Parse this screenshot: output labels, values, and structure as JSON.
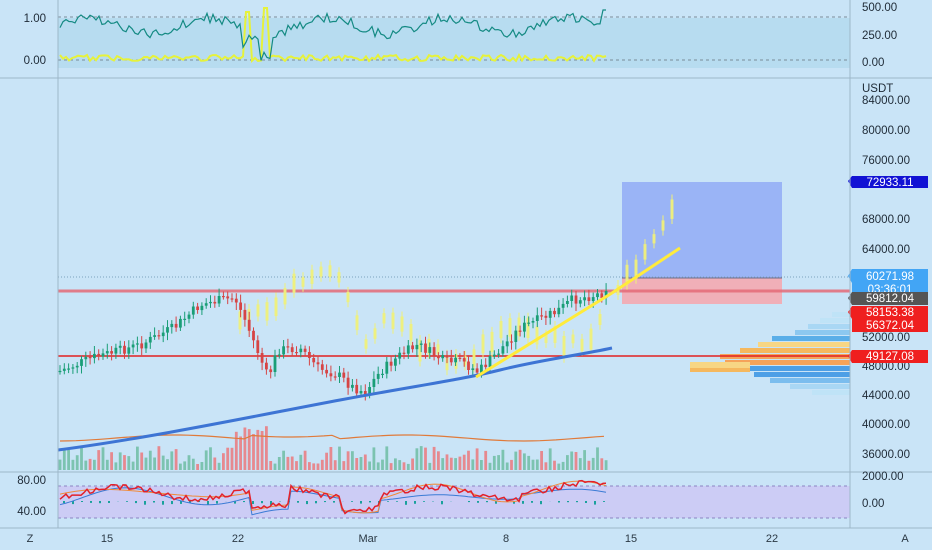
{
  "panels": {
    "top": {
      "left_axis": [
        "1.00",
        "0.00"
      ],
      "right_axis": [
        "500.00",
        "250.00",
        "0.00"
      ]
    },
    "bottom": {
      "left_axis": [
        "80.00",
        "40.00"
      ],
      "right_axis": [
        "2000.00",
        "0.00"
      ]
    }
  },
  "price_axis": {
    "currency": "USDT",
    "ticks": [
      "84000.00",
      "80000.00",
      "76000.00",
      "68000.00",
      "64000.00",
      "52000.00",
      "48000.00",
      "44000.00",
      "40000.00",
      "36000.00"
    ]
  },
  "price_tags": [
    {
      "label": "72933.11",
      "bg": "#1212d4",
      "fg": "#ffffff"
    },
    {
      "label": "60271.98",
      "bg": "#42a5f5",
      "fg": "#ffffff"
    },
    {
      "label": "03:36:01",
      "bg": "#42a5f5",
      "fg": "#ffffff"
    },
    {
      "label": "59812.04",
      "bg": "#555555",
      "fg": "#ffffff"
    },
    {
      "label": "58153.38",
      "bg": "#ef1f1f",
      "fg": "#ffffff"
    },
    {
      "label": "56372.04",
      "bg": "#ef1f1f",
      "fg": "#ffffff"
    },
    {
      "label": "49127.08",
      "bg": "#ef1f1f",
      "fg": "#ffffff"
    }
  ],
  "time_axis": {
    "corner_left": "Z",
    "corner_right": "A",
    "ticks": [
      "15",
      "22",
      "Mar",
      "8",
      "15",
      "22"
    ]
  },
  "colors": {
    "background": "#c9e4f7",
    "bull": "#1a9e77",
    "bear": "#d64545",
    "ghost": "#f0f07a",
    "ma_line": "#3d74d4",
    "trend_line": "#ffeb3b",
    "resistance": "#e83b3b",
    "target_box": "#8fa8f5",
    "stop_box": "#f4a9b0",
    "oscillator": "#148a83",
    "signal": "#e6f23a",
    "rsi": "#e2212b"
  }
}
